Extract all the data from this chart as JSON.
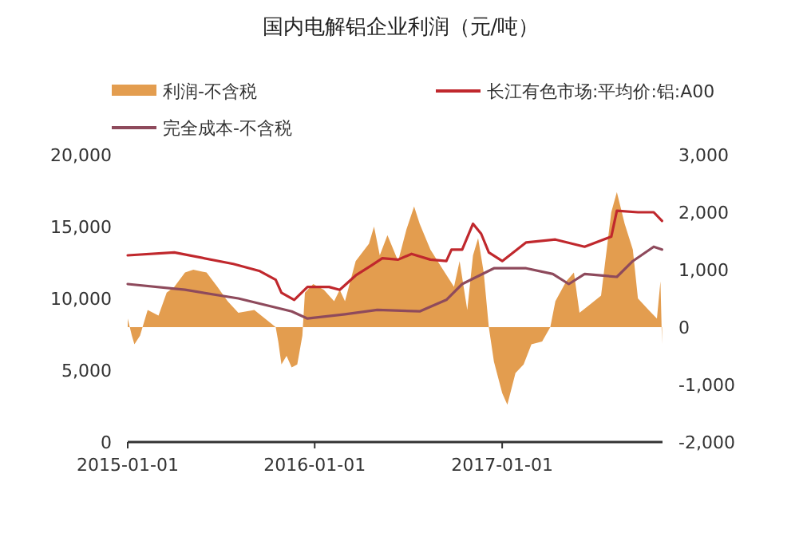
{
  "chart_data": {
    "type": "line",
    "title": "国内电解铝企业利润（元/吨）",
    "series": [
      {
        "name": "利润-不含税",
        "type": "area",
        "axis": "y2",
        "color": "#e39d4f",
        "x": [
          "2015-01-01",
          "2015-01-09",
          "2015-01-14",
          "2015-01-25",
          "2015-02-04",
          "2015-02-09",
          "2015-03-02",
          "2015-03-18",
          "2015-04-02",
          "2015-04-23",
          "2015-05-09",
          "2015-06-04",
          "2015-06-25",
          "2015-07-15",
          "2015-08-05",
          "2015-09-05",
          "2015-09-26",
          "2015-10-17",
          "2015-10-22",
          "2015-10-28",
          "2015-11-07",
          "2015-11-17",
          "2015-11-28",
          "2015-12-08",
          "2015-12-13",
          "2015-12-29",
          "2016-01-19",
          "2016-02-08",
          "2016-02-19",
          "2016-02-29",
          "2016-03-21",
          "2016-04-16",
          "2016-04-26",
          "2016-05-07",
          "2016-05-22",
          "2016-06-12",
          "2016-06-28",
          "2016-07-13",
          "2016-07-24",
          "2016-08-14",
          "2016-09-04",
          "2016-09-29",
          "2016-10-10",
          "2016-10-25",
          "2016-11-05",
          "2016-11-15",
          "2016-11-26",
          "2016-12-06",
          "2016-12-16",
          "2017-01-01",
          "2017-01-11",
          "2017-01-27",
          "2017-02-12",
          "2017-02-27",
          "2017-03-20",
          "2017-04-05",
          "2017-04-15",
          "2017-05-06",
          "2017-05-21",
          "2017-06-01",
          "2017-06-22",
          "2017-07-13",
          "2017-08-02",
          "2017-08-13",
          "2017-08-28",
          "2017-09-13",
          "2017-09-23",
          "2017-10-14",
          "2017-10-30",
          "2017-11-06",
          "2017-11-09"
        ],
        "values": [
          150,
          -150,
          -300,
          -150,
          150,
          300,
          200,
          600,
          700,
          950,
          1000,
          950,
          700,
          450,
          250,
          300,
          150,
          0,
          -250,
          -650,
          -500,
          -700,
          -650,
          -150,
          600,
          750,
          650,
          450,
          650,
          450,
          1150,
          1450,
          1750,
          1250,
          1600,
          1150,
          1700,
          2100,
          1800,
          1350,
          1050,
          700,
          1150,
          300,
          1250,
          1550,
          950,
          0,
          -600,
          -1150,
          -1350,
          -800,
          -650,
          -300,
          -250,
          0,
          450,
          800,
          950,
          250,
          400,
          550,
          2000,
          2350,
          1800,
          1350,
          500,
          300,
          150,
          800,
          -300
        ]
      },
      {
        "name": "长江有色市场:平均价:铝:A00",
        "axis": "y",
        "color": "#c0282d",
        "x": [
          "2015-01-01",
          "2015-04-02",
          "2015-07-26",
          "2015-09-16",
          "2015-10-17",
          "2015-10-28",
          "2015-11-22",
          "2015-12-18",
          "2016-01-29",
          "2016-02-19",
          "2016-03-21",
          "2016-04-21",
          "2016-05-12",
          "2016-06-12",
          "2016-07-08",
          "2016-08-14",
          "2016-09-14",
          "2016-09-24",
          "2016-10-15",
          "2016-11-05",
          "2016-11-21",
          "2016-12-06",
          "2017-01-01",
          "2017-02-17",
          "2017-04-15",
          "2017-06-11",
          "2017-08-02",
          "2017-08-13",
          "2017-09-23",
          "2017-10-24",
          "2017-11-09"
        ],
        "values": [
          13000,
          13200,
          12400,
          11900,
          11300,
          10400,
          9900,
          10800,
          10800,
          10600,
          11600,
          12300,
          12800,
          12700,
          13100,
          12700,
          12600,
          13400,
          13400,
          15200,
          14500,
          13200,
          12600,
          13900,
          14100,
          13600,
          14300,
          16100,
          16000,
          16000,
          15400
        ]
      },
      {
        "name": "完全成本-不含税",
        "axis": "y",
        "color": "#8e4a5c",
        "x": [
          "2015-01-01",
          "2015-04-23",
          "2015-08-05",
          "2015-11-17",
          "2015-12-18",
          "2016-02-29",
          "2016-05-02",
          "2016-07-24",
          "2016-09-14",
          "2016-10-15",
          "2016-12-16",
          "2017-02-17",
          "2017-04-10",
          "2017-05-11",
          "2017-06-11",
          "2017-08-13",
          "2017-09-13",
          "2017-10-24",
          "2017-11-09"
        ],
        "values": [
          11000,
          10600,
          10000,
          9100,
          8600,
          8900,
          9200,
          9100,
          9900,
          11000,
          12100,
          12100,
          11700,
          11000,
          11700,
          11500,
          12600,
          13600,
          13400
        ]
      }
    ],
    "xlim": [
      "2015-01-01",
      "2017-11-10"
    ],
    "xticks": [
      {
        "value": "2015-01-01",
        "label": "2015-01-01"
      },
      {
        "value": "2016-01-01",
        "label": "2016-01-01"
      },
      {
        "value": "2017-01-01",
        "label": "2017-01-01"
      }
    ],
    "ylim": [
      0,
      20000
    ],
    "yticks": [
      {
        "value": 0,
        "label": "0"
      },
      {
        "value": 5000,
        "label": "5,000"
      },
      {
        "value": 10000,
        "label": "10,000"
      },
      {
        "value": 15000,
        "label": "15,000"
      },
      {
        "value": 20000,
        "label": "20,000"
      }
    ],
    "y2lim": [
      -2000,
      3000
    ],
    "y2ticks": [
      {
        "value": -2000,
        "label": "-2,000"
      },
      {
        "value": -1000,
        "label": "-1,000"
      },
      {
        "value": 0,
        "label": "0"
      },
      {
        "value": 1000,
        "label": "1,000"
      },
      {
        "value": 2000,
        "label": "2,000"
      },
      {
        "value": 3000,
        "label": "3,000"
      }
    ],
    "legend": "top",
    "grid": false
  }
}
